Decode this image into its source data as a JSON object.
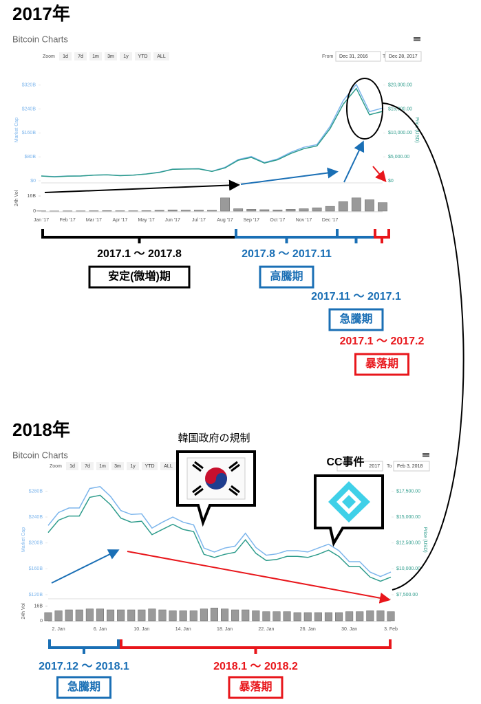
{
  "chart_data": [
    {
      "type": "line",
      "title": "2017年",
      "subtitle": "Bitcoin Charts",
      "zoom": {
        "label": "Zoom",
        "buttons": [
          "1d",
          "7d",
          "1m",
          "3m",
          "1y",
          "YTD",
          "ALL"
        ]
      },
      "from_label": "From",
      "from_date": "Dec 31, 2016",
      "to_label": "To",
      "to_date": "Dec 28, 2017",
      "ylabel": "Market Cap",
      "y2label": "Price (USD)",
      "categories": [
        "Jan '17",
        null,
        "Feb '17",
        null,
        "Mar '17",
        null,
        "Apr '17",
        null,
        "May '17",
        null,
        "Jun '17",
        null,
        "Jul '17",
        null,
        "Aug '17",
        null,
        "Sep '17",
        null,
        "Oct '17",
        null,
        "Nov '17",
        null,
        "Dec '17",
        null,
        null,
        null,
        null
      ],
      "series": [
        {
          "color": "#7cb5ec",
          "values": [
            16,
            14,
            16,
            16,
            19,
            20,
            18,
            19,
            23,
            29,
            39,
            40,
            41,
            32,
            45,
            71,
            81,
            61,
            73,
            95,
            112,
            121,
            182,
            268,
            322,
            231,
            243
          ]
        },
        {
          "color": "#2e9c8c",
          "axis": "y2",
          "values": [
            1000,
            820,
            970,
            1000,
            1190,
            1250,
            1080,
            1180,
            1420,
            1750,
            2400,
            2450,
            2500,
            1950,
            2700,
            4300,
            4900,
            3700,
            4400,
            5700,
            6700,
            7300,
            10900,
            16000,
            19300,
            13800,
            14500
          ]
        }
      ],
      "ylim": [
        0,
        340
      ],
      "yticks": [
        {
          "value": 0,
          "label": "$0"
        },
        {
          "value": 80,
          "label": "$80B"
        },
        {
          "value": 160,
          "label": "$160B"
        },
        {
          "value": 240,
          "label": "$240B"
        },
        {
          "value": 320,
          "label": "$320B"
        }
      ],
      "y2lim": [
        0,
        21250
      ],
      "y2ticks": [
        {
          "value": 0,
          "label": "$0"
        },
        {
          "value": 5000,
          "label": "$5,000.00"
        },
        {
          "value": 10000,
          "label": "$10,000.00"
        },
        {
          "value": 15000,
          "label": "$15,000.00"
        },
        {
          "value": 20000,
          "label": "$20,000.00"
        }
      ],
      "volume": {
        "label": "24h Vol",
        "color": "#9a9a9a",
        "ylim": [
          0,
          27
        ],
        "yticks": [
          0,
          {
            "value": 16,
            "label": "16B"
          }
        ],
        "values": [
          0.2,
          0.1,
          0.2,
          0.2,
          0.3,
          0.4,
          0.3,
          0.3,
          0.4,
          0.8,
          1.2,
          1.0,
          1.0,
          0.8,
          14,
          2.5,
          2.0,
          1.5,
          1.2,
          2.0,
          2.5,
          3.5,
          5,
          10,
          14,
          12,
          9
        ]
      },
      "periods": [
        {
          "range": "2017.1 〜 2017.8",
          "label": "安定(微増)期",
          "color": "#000000"
        },
        {
          "range": "2017.8 〜 2017.11",
          "label": "高騰期",
          "color": "#1a6fb5"
        },
        {
          "range": "2017.11 〜 2017.1",
          "label": "急騰期",
          "color": "#1a6fb5"
        },
        {
          "range": "2017.1 〜 2017.2",
          "label": "暴落期",
          "color": "#e8161b"
        }
      ]
    },
    {
      "type": "line",
      "title": "2018年",
      "subtitle": "Bitcoin Charts",
      "zoom": {
        "label": "Zoom",
        "buttons": [
          "1d",
          "7d",
          "1m",
          "3m",
          "1y",
          "YTD",
          "ALL"
        ]
      },
      "from_date": "2017",
      "to_label": "To",
      "to_date": "Feb 3, 2018",
      "ylabel": "Market Cap",
      "y2label": "Price (USD)",
      "categories": [
        null,
        "2. Jan",
        null,
        null,
        null,
        "6. Jan",
        null,
        null,
        null,
        "10. Jan",
        null,
        null,
        null,
        "14. Jan",
        null,
        null,
        null,
        "18. Jan",
        null,
        null,
        null,
        "22. Jan",
        null,
        null,
        null,
        "26. Jan",
        null,
        null,
        null,
        "30. Jan",
        null,
        null,
        null,
        "3. Feb"
      ],
      "series": [
        {
          "color": "#7cb5ec",
          "values": [
            227,
            247,
            254,
            254,
            284,
            287,
            272,
            250,
            244,
            245,
            223,
            232,
            240,
            232,
            228,
            192,
            186,
            192,
            195,
            215,
            193,
            181,
            183,
            188,
            188,
            186,
            192,
            198,
            188,
            171,
            171,
            155,
            148,
            155
          ]
        },
        {
          "color": "#2e9c8c",
          "axis": "y2",
          "values": [
            13500,
            14700,
            15100,
            15100,
            16900,
            17100,
            16200,
            14900,
            14500,
            14600,
            13300,
            13800,
            14300,
            13800,
            13600,
            11400,
            11100,
            11400,
            11600,
            12800,
            11500,
            10800,
            10900,
            11200,
            11200,
            11100,
            11400,
            11800,
            11200,
            10200,
            10200,
            9200,
            8800,
            9200
          ]
        }
      ],
      "ylim": [
        120,
        290
      ],
      "yticks": [
        {
          "value": 120,
          "label": "$120B"
        },
        {
          "value": 160,
          "label": "$160B"
        },
        {
          "value": 200,
          "label": "$200B"
        },
        {
          "value": 240,
          "label": "$240B"
        },
        {
          "value": 280,
          "label": "$280B"
        }
      ],
      "y2lim": [
        7500,
        18125
      ],
      "y2ticks": [
        {
          "value": 7500,
          "label": "$7,500.00"
        },
        {
          "value": 10000,
          "label": "$10,000.00"
        },
        {
          "value": 12500,
          "label": "$12,500.00"
        },
        {
          "value": 15000,
          "label": "$15,000.00"
        },
        {
          "value": 17500,
          "label": "$17,500.00"
        }
      ],
      "volume": {
        "label": "24h Vol",
        "color": "#9a9a9a",
        "ylim": [
          0,
          21
        ],
        "yticks": [
          0,
          {
            "value": 16,
            "label": "16B"
          }
        ],
        "values": [
          9,
          11,
          12,
          12,
          13,
          13,
          12,
          12,
          12,
          12,
          13,
          12,
          11,
          11,
          11,
          13,
          14,
          13,
          12,
          12,
          11,
          10,
          10,
          10,
          9,
          9,
          9,
          9,
          9,
          10,
          10,
          11,
          11,
          10
        ]
      },
      "periods": [
        {
          "range": "2017.12 〜 2018.1",
          "label": "急騰期",
          "color": "#1a6fb5"
        },
        {
          "range": "2018.1 〜 2018.2",
          "label": "暴落期",
          "color": "#e8161b"
        }
      ],
      "callouts": [
        "韓国政府の規制",
        "CC事件"
      ]
    }
  ]
}
